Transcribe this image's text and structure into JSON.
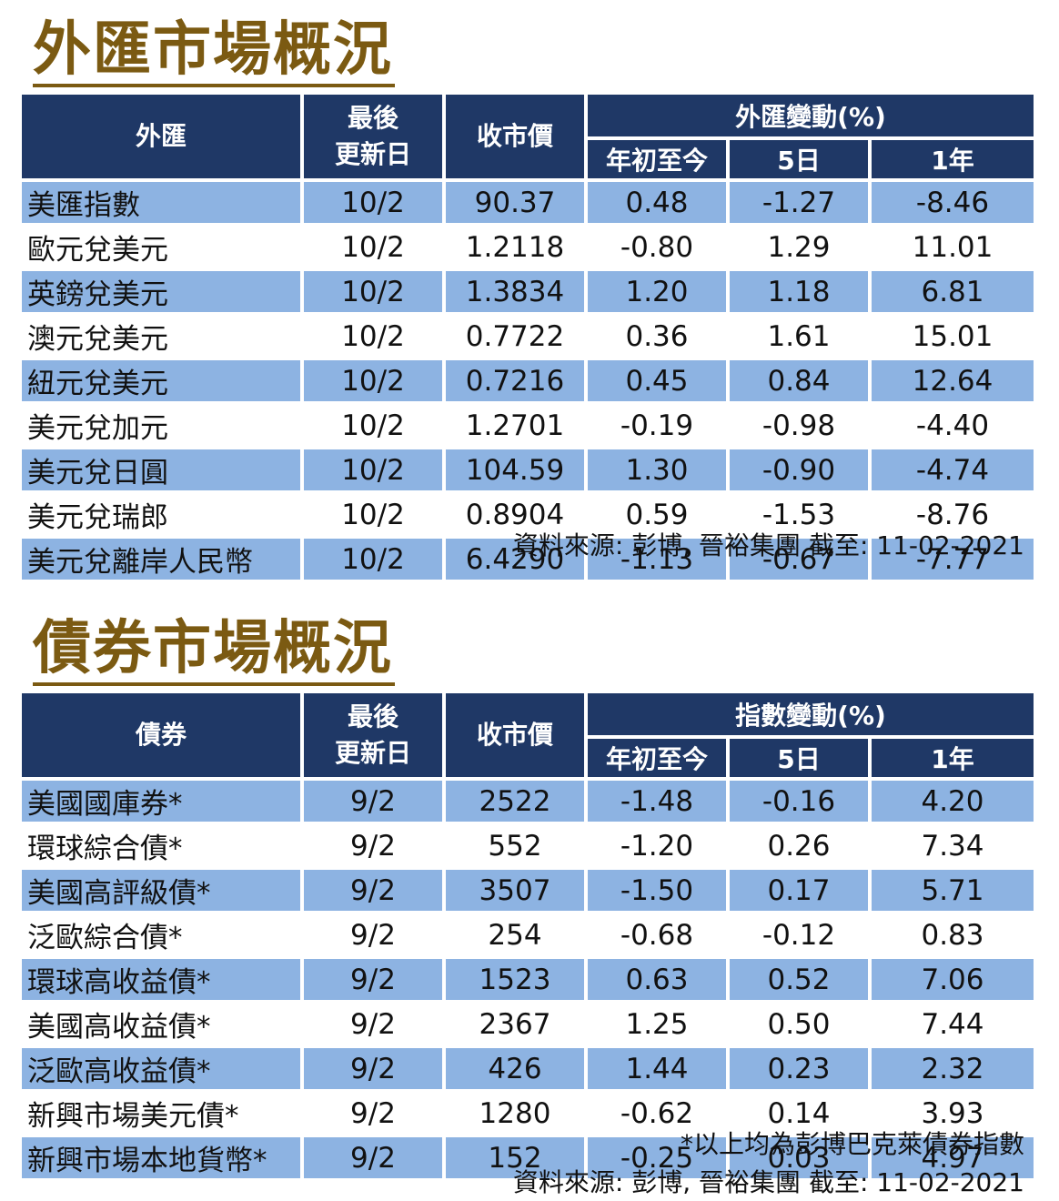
{
  "fx": {
    "title": "外匯市場概況",
    "headers": {
      "name": "外匯",
      "date_line1": "最後",
      "date_line2": "更新日",
      "close": "收市價",
      "group": "外匯變動(%)",
      "ytd": "年初至今",
      "d5": "5日",
      "y1": "1年"
    },
    "rows": [
      [
        "美匯指數",
        "10/2",
        "90.37",
        "0.48",
        "-1.27",
        "-8.46"
      ],
      [
        "歐元兌美元",
        "10/2",
        "1.2118",
        "-0.80",
        "1.29",
        "11.01"
      ],
      [
        "英鎊兌美元",
        "10/2",
        "1.3834",
        "1.20",
        "1.18",
        "6.81"
      ],
      [
        "澳元兌美元",
        "10/2",
        "0.7722",
        "0.36",
        "1.61",
        "15.01"
      ],
      [
        "紐元兌美元",
        "10/2",
        "0.7216",
        "0.45",
        "0.84",
        "12.64"
      ],
      [
        "美元兌加元",
        "10/2",
        "1.2701",
        "-0.19",
        "-0.98",
        "-4.40"
      ],
      [
        "美元兌日圓",
        "10/2",
        "104.59",
        "1.30",
        "-0.90",
        "-4.74"
      ],
      [
        "美元兌瑞郎",
        "10/2",
        "0.8904",
        "0.59",
        "-1.53",
        "-8.76"
      ],
      [
        "美元兌離岸人民幣",
        "10/2",
        "6.4290",
        "-1.13",
        "-0.67",
        "-7.77"
      ]
    ],
    "source": "資料來源: 彭博, 晉裕集團 截至:  11-02-2021"
  },
  "bond": {
    "title": "債券市場概況",
    "headers": {
      "name": "債券",
      "date_line1": "最後",
      "date_line2": "更新日",
      "close": "收市價",
      "group": "指數變動(%)",
      "ytd": "年初至今",
      "d5": "5日",
      "y1": "1年"
    },
    "rows": [
      [
        "美國國庫券*",
        "9/2",
        "2522",
        "-1.48",
        "-0.16",
        "4.20"
      ],
      [
        "環球綜合債*",
        "9/2",
        "552",
        "-1.20",
        "0.26",
        "7.34"
      ],
      [
        "美國高評級債*",
        "9/2",
        "3507",
        "-1.50",
        "0.17",
        "5.71"
      ],
      [
        "泛歐綜合債*",
        "9/2",
        "254",
        "-0.68",
        "-0.12",
        "0.83"
      ],
      [
        "環球高收益債*",
        "9/2",
        "1523",
        "0.63",
        "0.52",
        "7.06"
      ],
      [
        "美國高收益債*",
        "9/2",
        "2367",
        "1.25",
        "0.50",
        "7.44"
      ],
      [
        "泛歐高收益債*",
        "9/2",
        "426",
        "1.44",
        "0.23",
        "2.32"
      ],
      [
        "新興市場美元債*",
        "9/2",
        "1280",
        "-0.62",
        "0.14",
        "3.93"
      ],
      [
        "新興市場本地貨幣*",
        "9/2",
        "152",
        "-0.25",
        "0.03",
        "4.97"
      ]
    ],
    "footnote": "*以上均為彭博巴克萊債券指數",
    "source": "資料來源: 彭博, 晉裕集團 截至:  11-02-2021"
  },
  "colors": {
    "title": "#7b5a12",
    "header_bg": "#1f3866",
    "row_shade": "#8db3e2"
  }
}
